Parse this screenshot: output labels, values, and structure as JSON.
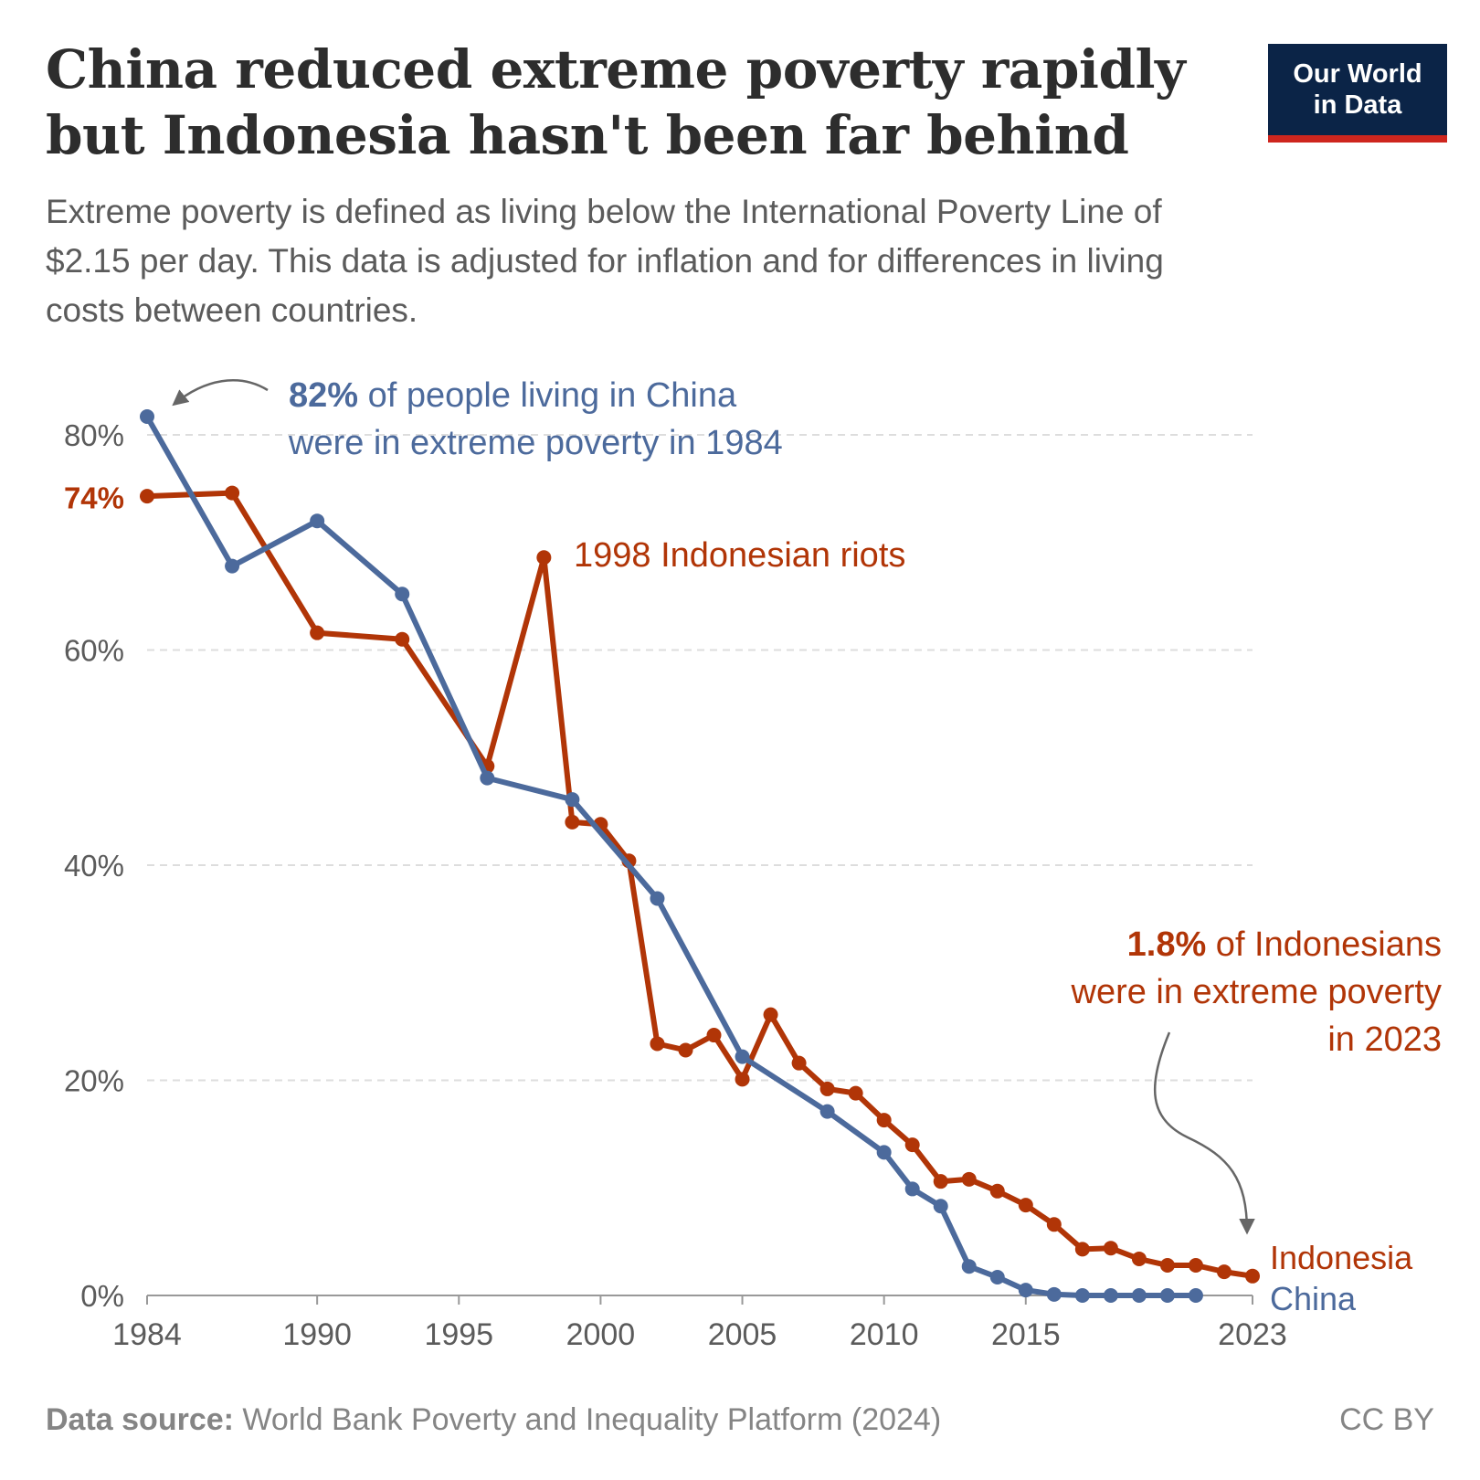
{
  "title_lines": [
    "China reduced extreme poverty rapidly",
    "but Indonesia hasn't been far behind"
  ],
  "subtitle_lines": [
    "Extreme poverty is defined as living below the International Poverty Line of",
    "$2.15 per day. This data is adjusted for inflation and for differences in living",
    "costs between countries."
  ],
  "logo": {
    "line1": "Our World",
    "line2": "in Data"
  },
  "footer": {
    "source_label": "Data source:",
    "source_text": " World Bank Poverty and Inequality Platform (2024)",
    "license": "CC BY"
  },
  "colors": {
    "china": "#4c6a9c",
    "indonesia": "#b13507",
    "grid": "#dddddd",
    "axis": "#999999",
    "tick_text": "#5b5b5b",
    "arrow": "#666666"
  },
  "chart_data": {
    "type": "line",
    "xlim": [
      1984,
      2023
    ],
    "ylim": [
      0,
      80
    ],
    "grid": true,
    "x_ticks": [
      1984,
      1990,
      1995,
      2000,
      2005,
      2010,
      2015,
      2023
    ],
    "y_ticks": [
      {
        "value": 0,
        "label": "0%"
      },
      {
        "value": 20,
        "label": "20%"
      },
      {
        "value": 40,
        "label": "40%"
      },
      {
        "value": 60,
        "label": "60%"
      },
      {
        "value": 80,
        "label": "80%"
      }
    ],
    "y_highlight_label": {
      "value": 74,
      "label": "74%"
    },
    "series": [
      {
        "name": "Indonesia",
        "color": "#b13507",
        "points": [
          [
            1984,
            74.3
          ],
          [
            1987,
            74.6
          ],
          [
            1990,
            61.6
          ],
          [
            1993,
            61.0
          ],
          [
            1996,
            49.2
          ],
          [
            1998,
            68.6
          ],
          [
            1999,
            44.0
          ],
          [
            2000,
            43.8
          ],
          [
            2001,
            40.4
          ],
          [
            2002,
            23.4
          ],
          [
            2003,
            22.8
          ],
          [
            2004,
            24.2
          ],
          [
            2005,
            20.1
          ],
          [
            2006,
            26.1
          ],
          [
            2007,
            21.6
          ],
          [
            2008,
            19.2
          ],
          [
            2009,
            18.8
          ],
          [
            2010,
            16.3
          ],
          [
            2011,
            14.0
          ],
          [
            2012,
            10.6
          ],
          [
            2013,
            10.8
          ],
          [
            2014,
            9.7
          ],
          [
            2015,
            8.4
          ],
          [
            2016,
            6.6
          ],
          [
            2017,
            4.3
          ],
          [
            2018,
            4.4
          ],
          [
            2019,
            3.4
          ],
          [
            2020,
            2.8
          ],
          [
            2021,
            2.8
          ],
          [
            2022,
            2.2
          ],
          [
            2023,
            1.8
          ]
        ]
      },
      {
        "name": "China",
        "color": "#4c6a9c",
        "points": [
          [
            1984,
            81.7
          ],
          [
            1987,
            67.8
          ],
          [
            1990,
            72.0
          ],
          [
            1993,
            65.2
          ],
          [
            1996,
            48.1
          ],
          [
            1999,
            46.1
          ],
          [
            2002,
            36.9
          ],
          [
            2005,
            22.2
          ],
          [
            2008,
            17.1
          ],
          [
            2010,
            13.3
          ],
          [
            2011,
            9.9
          ],
          [
            2012,
            8.3
          ],
          [
            2013,
            2.7
          ],
          [
            2014,
            1.7
          ],
          [
            2015,
            0.5
          ],
          [
            2016,
            0.1
          ],
          [
            2017,
            0.0
          ],
          [
            2018,
            0.0
          ],
          [
            2019,
            0.0
          ],
          [
            2020,
            0.0
          ],
          [
            2021,
            0.0
          ]
        ]
      }
    ],
    "annotations": {
      "china_1984": {
        "bold": "82%",
        "rest": " of people living in China",
        "line2": "were in extreme poverty in 1984"
      },
      "riots": {
        "text": "1998 Indonesian riots"
      },
      "indonesia_2023": {
        "bold": "1.8%",
        "rest": " of Indonesians",
        "line2": "were in extreme poverty",
        "line3": "in 2023"
      }
    }
  }
}
